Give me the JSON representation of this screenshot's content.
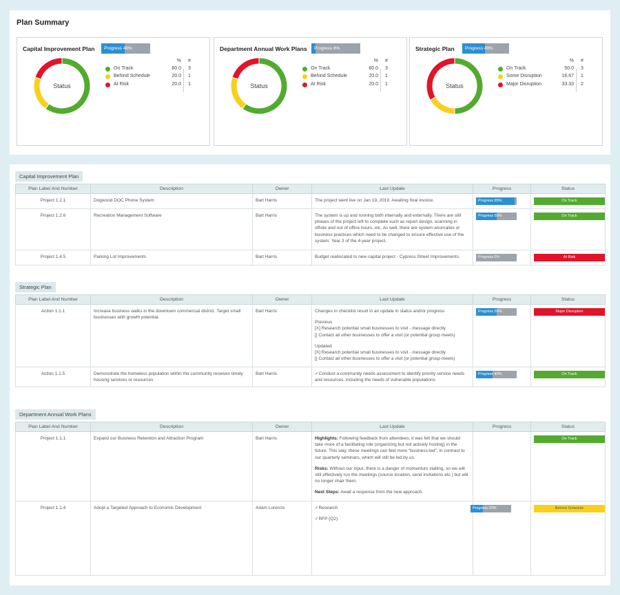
{
  "summary_title": "Plan Summary",
  "cards": [
    {
      "title": "Capital Improvement Plan",
      "progress_label": "Progress 48%",
      "progress": 0.48,
      "center_label": "Status",
      "pct_header": "%",
      "num_header": "#",
      "legend": [
        {
          "label": "On Track",
          "pct": "60.0",
          "count": "3",
          "color": "#52ab2f"
        },
        {
          "label": "Behind Schedule",
          "pct": "20.0",
          "count": "1",
          "color": "#f8d01c"
        },
        {
          "label": "At Risk",
          "pct": "20.0",
          "count": "1",
          "color": "#e1142a"
        }
      ]
    },
    {
      "title": "Department Annual Work Plans",
      "progress_label": "Progress 8%",
      "progress": 0.08,
      "center_label": "Status",
      "pct_header": "%",
      "num_header": "#",
      "legend": [
        {
          "label": "On Track",
          "pct": "60.0",
          "count": "3",
          "color": "#52ab2f"
        },
        {
          "label": "Behind Schedule",
          "pct": "20.0",
          "count": "1",
          "color": "#f8d01c"
        },
        {
          "label": "At Risk",
          "pct": "20.0",
          "count": "1",
          "color": "#e1142a"
        }
      ]
    },
    {
      "title": "Strategic Plan",
      "progress_label": "Progress 49%",
      "progress": 0.49,
      "center_label": "Status",
      "pct_header": "%",
      "num_header": "#",
      "legend": [
        {
          "label": "On Track",
          "pct": "50.0",
          "count": "3",
          "color": "#52ab2f"
        },
        {
          "label": "Some Disruption",
          "pct": "16.67",
          "count": "1",
          "color": "#f8d01c"
        },
        {
          "label": "Major Disruption",
          "pct": "33.33",
          "count": "2",
          "color": "#e1142a"
        }
      ]
    }
  ],
  "columns": [
    "Plan Label And Number",
    "Description",
    "Owner",
    "Last Update",
    "Progress",
    "Status"
  ],
  "colors": {
    "on_track": "#52ab2f",
    "at_risk": "#e1142a",
    "behind": "#f8d01c",
    "progress_blue": "#2d8fd1",
    "progress_gray": "#9da3aa"
  },
  "sections": [
    {
      "name": "Capital Improvement Plan",
      "rows": [
        {
          "label": "Project 1.2.1",
          "description": "Dogwood DOC Phone System",
          "owner": "Bart Harris",
          "update": [
            "The project went live on Jan 19, 2019. Awaiting final invoice."
          ],
          "progress_label": "Progress 95%",
          "progress": 0.95,
          "status": "On Track",
          "status_color": "#52ab2f",
          "status_text_color": "#ffffff"
        },
        {
          "label": "Project 1.2.6",
          "description": "Recreation Management Software",
          "owner": "Bart Harris",
          "update": [
            "The system is up and running both internally and externally. There are still phases of the project left to complete such as report design, scanning in offsite and out of office hours, etc. As well, there are system anomalies or business practices which need to be changed to ensure effective use of the system. Year 3 of the 4-year project."
          ],
          "progress_label": "Progress 50%",
          "progress": 0.5,
          "status": "On Track",
          "status_color": "#52ab2f",
          "status_text_color": "#ffffff"
        },
        {
          "label": "Project 1.4.5",
          "description": "Parking Lot Improvements",
          "owner": "Bart Harris",
          "update": [
            "Budget reallocated to new capital project - Cypress Street Improvements."
          ],
          "progress_label": "Progress 0%",
          "progress": 0,
          "status": "At Risk",
          "status_color": "#e1142a",
          "status_text_color": "#ffffff"
        }
      ]
    },
    {
      "name": "Strategic Plan",
      "rows": [
        {
          "label": "Action 1.1.1",
          "description": "Increase business walks in the downtown commercial district. Target small businesses with growth potential.",
          "owner": "Bart Harris",
          "update": [
            "Changes in checklist result in an update in status and/or progress",
            "Previous\n[X] Research potential small businesses to visit - message directly\n[] Contact all other businesses to offer a visit (or potential group meets)",
            "Updated\n[X] Research potential small businesses to visit - message directly\n[] Contact all other businesses to offer a visit (or potential group meets)"
          ],
          "progress_label": "Progress 50%",
          "progress": 0.5,
          "status": "Major Disruption",
          "status_color": "#e1142a",
          "status_text_color": "#ffffff"
        },
        {
          "label": "Action 1.1.5",
          "description": "Demonstrate the homeless population within the community receives timely housing services or resources",
          "owner": "Bart Harris",
          "update": [
            "✓Conduct a community needs assessment to identify priority service needs and resources, including the needs of vulnerable populations"
          ],
          "progress_label": "Progress 40%",
          "progress": 0.4,
          "status": "On Track",
          "status_color": "#52ab2f",
          "status_text_color": "#ffffff"
        }
      ]
    },
    {
      "name": "Department Annual Work Plans",
      "rows": [
        {
          "label": "Project 1.1.1",
          "description": "Expand our Business Retention and Attraction Program",
          "owner": "Bart Harris",
          "update_rich": [
            {
              "bold": "Highlights:",
              "text": " Following feedback from attendees, it was felt that we should take more of a facilitating role (organizing but not actively hosting) in the future. This way, these meetings can feel more “business-led”, in contrast to our quarterly seminars, which will still be led by us."
            },
            {
              "bold": "Risks:",
              "text": " Without our input, there is a danger of momentum stalling, so we will still effectively run the meetings (source location, send invitations etc.) but will no longer chair them."
            },
            {
              "bold": "Next Steps:",
              "text": " Await a response from the new approach."
            }
          ],
          "progress_label": "",
          "progress": null,
          "status": "On Track",
          "status_color": "#52ab2f",
          "status_text_color": "#ffffff"
        },
        {
          "label": "Project 1.1.4",
          "description": "Adopt a Targeted Approach to Economic Development",
          "owner": "Adam Lorenzo",
          "update": [
            "✓Research",
            "✓RFP (Q2)"
          ],
          "progress_label": "Progress 30%",
          "progress": 0.3,
          "status": "Behind Schedule",
          "status_color": "#f8d01c",
          "status_text_color": "#555555"
        }
      ]
    }
  ]
}
